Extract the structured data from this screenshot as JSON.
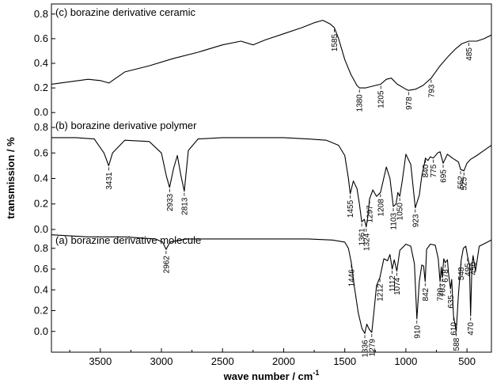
{
  "chart_data": {
    "type": "line",
    "xlabel": "wave number / cm",
    "xlabel_superscript": "-1",
    "ylabel": "transmission / %",
    "xlim": [
      3900,
      300
    ],
    "x_ticks": [
      "3500",
      "3000",
      "2500",
      "2000",
      "1500",
      "1000",
      "500"
    ],
    "x_tick_values": [
      3500,
      3000,
      2500,
      2000,
      1500,
      1000,
      500
    ],
    "grid": false,
    "panels": [
      {
        "label": "(c) borazine derivative ceramic",
        "ylim": [
          -0.05,
          0.85
        ],
        "y_ticks": [
          "0.0",
          "0.2",
          "0.4",
          "0.6",
          "0.8"
        ],
        "y_tick_values": [
          0.0,
          0.2,
          0.4,
          0.6,
          0.8
        ],
        "x": [
          3900,
          3750,
          3600,
          3500,
          3430,
          3300,
          3100,
          2900,
          2700,
          2500,
          2350,
          2250,
          2150,
          2000,
          1850,
          1750,
          1680,
          1620,
          1585,
          1550,
          1500,
          1450,
          1400,
          1380,
          1330,
          1250,
          1205,
          1160,
          1120,
          1070,
          1000,
          978,
          920,
          860,
          793,
          720,
          650,
          590,
          540,
          485,
          420,
          360,
          300
        ],
        "y": [
          0.23,
          0.25,
          0.27,
          0.26,
          0.24,
          0.33,
          0.38,
          0.44,
          0.49,
          0.55,
          0.58,
          0.55,
          0.59,
          0.64,
          0.69,
          0.73,
          0.75,
          0.72,
          0.69,
          0.6,
          0.43,
          0.31,
          0.22,
          0.2,
          0.2,
          0.22,
          0.23,
          0.27,
          0.28,
          0.23,
          0.19,
          0.18,
          0.19,
          0.22,
          0.28,
          0.38,
          0.46,
          0.52,
          0.56,
          0.58,
          0.58,
          0.6,
          0.63
        ],
        "peaks": [
          {
            "label": "1585",
            "x": 1585,
            "y": 0.69
          },
          {
            "label": "1380",
            "x": 1380,
            "y": 0.2
          },
          {
            "label": "1205",
            "x": 1205,
            "y": 0.23
          },
          {
            "label": "978",
            "x": 978,
            "y": 0.18
          },
          {
            "label": "793",
            "x": 793,
            "y": 0.28
          },
          {
            "label": "485",
            "x": 485,
            "y": 0.58
          }
        ]
      },
      {
        "label": "(b) borazine derivative polymer",
        "ylim": [
          -0.05,
          0.85
        ],
        "y_ticks": [
          "0.0",
          "0.2",
          "0.4",
          "0.6",
          "0.8"
        ],
        "y_tick_values": [
          0.0,
          0.2,
          0.4,
          0.6,
          0.8
        ],
        "x": [
          3900,
          3700,
          3550,
          3470,
          3431,
          3400,
          3300,
          3100,
          3000,
          2960,
          2933,
          2900,
          2870,
          2840,
          2813,
          2780,
          2700,
          2500,
          2200,
          2000,
          1800,
          1650,
          1550,
          1500,
          1470,
          1455,
          1430,
          1400,
          1380,
          1361,
          1340,
          1324,
          1310,
          1297,
          1270,
          1240,
          1208,
          1160,
          1130,
          1103,
          1080,
          1065,
          1050,
          1030,
          1000,
          960,
          923,
          890,
          870,
          850,
          840,
          820,
          800,
          775,
          740,
          720,
          695,
          660,
          620,
          570,
          552,
          525,
          500,
          470,
          420,
          360,
          300
        ],
        "y": [
          0.72,
          0.72,
          0.71,
          0.6,
          0.5,
          0.6,
          0.7,
          0.69,
          0.6,
          0.42,
          0.33,
          0.48,
          0.58,
          0.42,
          0.3,
          0.62,
          0.71,
          0.72,
          0.72,
          0.72,
          0.71,
          0.7,
          0.66,
          0.58,
          0.4,
          0.28,
          0.38,
          0.32,
          0.2,
          0.06,
          0.08,
          0.02,
          0.11,
          0.24,
          0.31,
          0.26,
          0.29,
          0.49,
          0.4,
          0.18,
          0.2,
          0.29,
          0.26,
          0.38,
          0.59,
          0.51,
          0.17,
          0.27,
          0.42,
          0.51,
          0.56,
          0.54,
          0.57,
          0.56,
          0.6,
          0.61,
          0.52,
          0.59,
          0.56,
          0.53,
          0.47,
          0.46,
          0.52,
          0.55,
          0.58,
          0.62,
          0.66
        ],
        "peaks": [
          {
            "label": "3431",
            "x": 3431,
            "y": 0.5
          },
          {
            "label": "2933",
            "x": 2933,
            "y": 0.33
          },
          {
            "label": "2813",
            "x": 2813,
            "y": 0.3
          },
          {
            "label": "1455",
            "x": 1455,
            "y": 0.28
          },
          {
            "label": "1361",
            "x": 1361,
            "y": 0.06
          },
          {
            "label": "1324",
            "x": 1324,
            "y": 0.02
          },
          {
            "label": "1297",
            "x": 1297,
            "y": 0.24
          },
          {
            "label": "1208",
            "x": 1208,
            "y": 0.29
          },
          {
            "label": "1103",
            "x": 1103,
            "y": 0.18
          },
          {
            "label": "1050",
            "x": 1050,
            "y": 0.26
          },
          {
            "label": "923",
            "x": 923,
            "y": 0.17
          },
          {
            "label": "840",
            "x": 840,
            "y": 0.56
          },
          {
            "label": "775",
            "x": 775,
            "y": 0.56
          },
          {
            "label": "695",
            "x": 695,
            "y": 0.52
          },
          {
            "label": "552",
            "x": 552,
            "y": 0.47
          },
          {
            "label": "525",
            "x": 525,
            "y": 0.46
          }
        ]
      },
      {
        "label": "(a) borazine derivative molecule",
        "ylim": [
          -0.2,
          0.92
        ],
        "y_ticks": [
          "0.0",
          "0.2",
          "0.4",
          "0.6",
          "0.8"
        ],
        "y_tick_values": [
          0.0,
          0.2,
          0.4,
          0.6,
          0.8
        ],
        "x": [
          3900,
          3600,
          3300,
          3050,
          2990,
          2962,
          2930,
          2800,
          2500,
          2200,
          2000,
          1800,
          1600,
          1500,
          1470,
          1446,
          1420,
          1390,
          1360,
          1336,
          1320,
          1300,
          1279,
          1260,
          1240,
          1212,
          1180,
          1150,
          1130,
          1112,
          1095,
          1074,
          1050,
          1000,
          960,
          930,
          910,
          890,
          870,
          855,
          842,
          830,
          800,
          760,
          735,
          720,
          710,
          703,
          690,
          678,
          660,
          650,
          635,
          625,
          610,
          600,
          588,
          570,
          555,
          548,
          530,
          510,
          495,
          480,
          470,
          460,
          450,
          430,
          400,
          350,
          300
        ],
        "y": [
          0.93,
          0.91,
          0.91,
          0.89,
          0.86,
          0.79,
          0.86,
          0.89,
          0.89,
          0.89,
          0.89,
          0.89,
          0.88,
          0.86,
          0.8,
          0.66,
          0.42,
          0.18,
          0.03,
          -0.02,
          0.07,
          0.02,
          -0.01,
          0.2,
          0.44,
          0.52,
          0.7,
          0.68,
          0.74,
          0.6,
          0.69,
          0.58,
          0.78,
          0.84,
          0.82,
          0.65,
          0.12,
          0.48,
          0.64,
          0.63,
          0.48,
          0.79,
          0.84,
          0.83,
          0.7,
          0.48,
          0.62,
          0.52,
          0.7,
          0.66,
          0.69,
          0.55,
          0.41,
          0.5,
          0.15,
          0.08,
          0.0,
          0.35,
          0.58,
          0.68,
          0.8,
          0.82,
          0.72,
          0.64,
          0.15,
          0.62,
          0.73,
          0.58,
          0.82,
          0.85,
          0.88
        ],
        "peaks": [
          {
            "label": "2962",
            "x": 2962,
            "y": 0.79
          },
          {
            "label": "1446",
            "x": 1446,
            "y": 0.66
          },
          {
            "label": "1336",
            "x": 1336,
            "y": -0.02
          },
          {
            "label": "1279",
            "x": 1279,
            "y": -0.01
          },
          {
            "label": "1212",
            "x": 1212,
            "y": 0.52
          },
          {
            "label": "1112",
            "x": 1112,
            "y": 0.6
          },
          {
            "label": "1074",
            "x": 1074,
            "y": 0.58
          },
          {
            "label": "910",
            "x": 910,
            "y": 0.12
          },
          {
            "label": "842",
            "x": 842,
            "y": 0.48
          },
          {
            "label": "720",
            "x": 720,
            "y": 0.48
          },
          {
            "label": "703",
            "x": 703,
            "y": 0.52
          },
          {
            "label": "678",
            "x": 678,
            "y": 0.66
          },
          {
            "label": "635",
            "x": 635,
            "y": 0.41
          },
          {
            "label": "610",
            "x": 610,
            "y": 0.15
          },
          {
            "label": "588",
            "x": 588,
            "y": 0.0
          },
          {
            "label": "548",
            "x": 548,
            "y": 0.68
          },
          {
            "label": "495",
            "x": 495,
            "y": 0.72
          },
          {
            "label": "470",
            "x": 470,
            "y": 0.15
          },
          {
            "label": "450",
            "x": 450,
            "y": 0.73
          }
        ]
      }
    ]
  }
}
